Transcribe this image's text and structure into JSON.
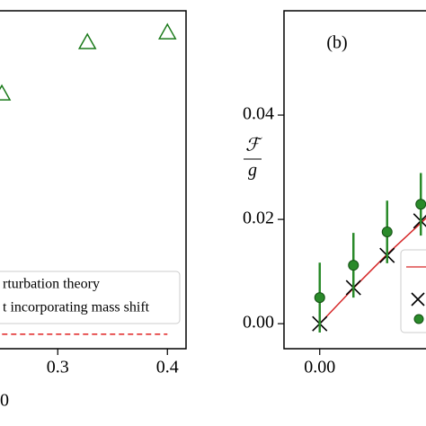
{
  "chart_data": [
    {
      "type": "scatter",
      "xlabel": "0",
      "xlim": [
        0.2,
        0.417
      ],
      "xticks": [
        0.3,
        0.4
      ],
      "ylim": [
        0,
        1
      ],
      "legend": [
        "rturbation theory",
        "t incorporating mass shift"
      ],
      "series": [
        {
          "marker": "triangle",
          "color": "#1a7a1a",
          "x": [
            0.249,
            0.327,
            0.4
          ],
          "values": [
            0.755,
            0.907,
            0.936
          ]
        },
        {
          "marker": "dashed-line",
          "color": "#e02020",
          "x": [
            0.2,
            0.4
          ],
          "values": [
            0.043,
            0.043
          ]
        }
      ]
    },
    {
      "type": "scatter",
      "panel_label": "(b)",
      "ylabel": {
        "numerator": "ℱ",
        "denominator": "g"
      },
      "xlim": [
        -0.053,
        0.2
      ],
      "xticks": [
        {
          "value": 0,
          "label": "0.00"
        }
      ],
      "ylim": [
        -0.0048,
        0.06
      ],
      "yticks": [
        {
          "value": 0,
          "label": "0.00"
        },
        {
          "value": 0.02,
          "label": "0.02"
        },
        {
          "value": 0.04,
          "label": "0.04"
        }
      ],
      "series": [
        {
          "marker": "line",
          "color": "#d62728",
          "x": [
            0,
            0.05,
            0.1,
            0.16
          ],
          "values": [
            0,
            0.0068,
            0.0133,
            0.0205
          ]
        },
        {
          "marker": "cross",
          "color": "#000000",
          "x": [
            0,
            0.05,
            0.1,
            0.15
          ],
          "values": [
            0,
            0.0069,
            0.0131,
            0.0197
          ]
        },
        {
          "marker": "circle",
          "color": "#2a8a2a",
          "x": [
            0,
            0.05,
            0.1,
            0.15
          ],
          "values": [
            0.005,
            0.0112,
            0.0176,
            0.0229
          ],
          "errors": [
            0.0067,
            0.0062,
            0.006,
            0.006
          ]
        }
      ]
    }
  ]
}
